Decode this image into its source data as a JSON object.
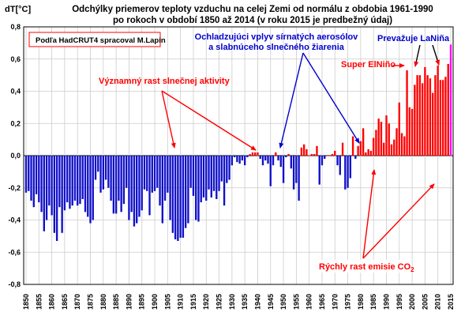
{
  "chart_data": {
    "type": "bar",
    "title_lines": [
      "Odchýlky priemerov teploty vzduchu na celej Zemi od normálu z obdobia 1961-1990",
      "po rokoch v období 1850 až 2014 (v roku 2015 je predbežný údaj)"
    ],
    "ylabel": "dT[°C]",
    "ylim": [
      -0.8,
      0.8
    ],
    "yticks": [
      "-0,8",
      "-0,6",
      "-0,4",
      "-0,2",
      "0,0",
      "0,2",
      "0,4",
      "0,6",
      "0,8"
    ],
    "ytick_values": [
      -0.8,
      -0.6,
      -0.4,
      -0.2,
      0.0,
      0.2,
      0.4,
      0.6,
      0.8
    ],
    "x_start": 1850,
    "x_end": 2015,
    "xticks": [
      "1850",
      "1855",
      "1860",
      "1865",
      "1870",
      "1875",
      "1880",
      "1885",
      "1890",
      "1895",
      "1900",
      "1905",
      "1910",
      "1915",
      "1920",
      "1925",
      "1930",
      "1935",
      "1940",
      "1945",
      "1950",
      "1955",
      "1960",
      "1965",
      "1970",
      "1975",
      "1980",
      "1985",
      "1990",
      "1995",
      "2000",
      "2005",
      "2010",
      "2015"
    ],
    "grid": true,
    "legend_box": "Podľa HadCRUT4 spracoval M.Lapin",
    "colors": {
      "negative": "#1010c8",
      "positive": "#ff0000",
      "preliminary": "#ff00ff",
      "annotation_red": "#ff0000",
      "annotation_blue": "#0000cc"
    },
    "values": [
      -0.23,
      -0.22,
      -0.28,
      -0.32,
      -0.24,
      -0.29,
      -0.35,
      -0.47,
      -0.4,
      -0.31,
      -0.37,
      -0.48,
      -0.53,
      -0.32,
      -0.48,
      -0.34,
      -0.29,
      -0.33,
      -0.31,
      -0.28,
      -0.31,
      -0.3,
      -0.27,
      -0.35,
      -0.38,
      -0.42,
      -0.4,
      -0.15,
      -0.1,
      -0.23,
      -0.21,
      -0.15,
      -0.2,
      -0.28,
      -0.36,
      -0.36,
      -0.28,
      -0.35,
      -0.3,
      -0.2,
      -0.4,
      -0.35,
      -0.44,
      -0.42,
      -0.38,
      -0.34,
      -0.21,
      -0.22,
      -0.37,
      -0.23,
      -0.22,
      -0.2,
      -0.31,
      -0.42,
      -0.28,
      -0.23,
      -0.4,
      -0.48,
      -0.52,
      -0.53,
      -0.51,
      -0.51,
      -0.45,
      -0.42,
      -0.2,
      -0.25,
      -0.4,
      -0.41,
      -0.29,
      -0.26,
      -0.28,
      -0.21,
      -0.26,
      -0.22,
      -0.27,
      -0.22,
      -0.16,
      -0.31,
      -0.17,
      -0.15,
      -0.06,
      -0.01,
      -0.04,
      -0.05,
      -0.03,
      -0.06,
      -0.01,
      0.01,
      0.02,
      0.02,
      0.02,
      -0.02,
      -0.06,
      -0.03,
      -0.05,
      -0.19,
      -0.06,
      0.02,
      -0.03,
      -0.07,
      -0.17,
      -0.01,
      0.01,
      -0.08,
      -0.21,
      -0.17,
      -0.28,
      0.05,
      0.07,
      0.04,
      0.0,
      0.01,
      0.01,
      0.06,
      -0.18,
      -0.06,
      -0.02,
      0.0,
      0.0,
      0.01,
      0.03,
      -0.06,
      -0.12,
      0.08,
      -0.21,
      -0.2,
      -0.14,
      0.12,
      -0.02,
      0.06,
      0.09,
      0.17,
      0.02,
      0.04,
      0.03,
      0.11,
      0.16,
      0.23,
      0.21,
      0.08,
      0.25,
      0.2,
      0.07,
      0.1,
      0.17,
      0.33,
      0.14,
      0.12,
      0.53,
      0.3,
      0.29,
      0.44,
      0.5,
      0.5,
      0.45,
      0.55,
      0.5,
      0.48,
      0.39,
      0.5,
      0.56,
      0.47,
      0.47,
      0.49,
      0.57,
      0.69
    ],
    "annotations": {
      "solar": "Významný rast slnečnej aktivity",
      "aerosol_line1": "Ochladzujúci vplyv sírnatých aerosólov",
      "aerosol_line2": "a slabnúceho slnečného žiarenia",
      "lanina": "Prevažuje LaNiña",
      "elnino": "Super ElNiño",
      "co2": "Rýchly rast emisie CO",
      "co2_sub": "2"
    }
  }
}
